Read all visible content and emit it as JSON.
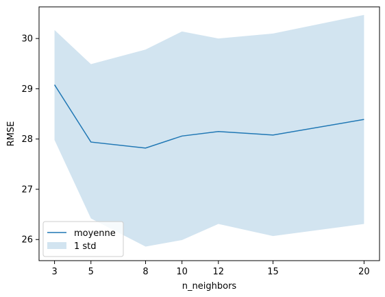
{
  "chart_data": {
    "type": "line",
    "xlabel": "n_neighbors",
    "ylabel": "RMSE",
    "x": [
      3,
      5,
      8,
      10,
      12,
      15,
      20
    ],
    "xlim": [
      2.15,
      20.85
    ],
    "ylim": [
      25.58,
      30.63
    ],
    "xticks": [
      3,
      5,
      8,
      10,
      12,
      15,
      20
    ],
    "yticks": [
      26,
      27,
      28,
      29,
      30
    ],
    "grid": false,
    "legend_placement": "lower-left",
    "series": [
      {
        "name": "moyenne",
        "kind": "line",
        "color": "#1f77b4",
        "values": [
          29.08,
          27.94,
          27.82,
          28.06,
          28.15,
          28.08,
          28.39
        ]
      },
      {
        "name": "1 std",
        "kind": "band",
        "color": "#1f77b4",
        "upper": [
          30.17,
          29.49,
          29.78,
          30.14,
          30.0,
          30.1,
          30.47
        ],
        "lower": [
          27.98,
          26.42,
          25.86,
          25.99,
          26.31,
          26.07,
          26.31
        ]
      }
    ]
  }
}
